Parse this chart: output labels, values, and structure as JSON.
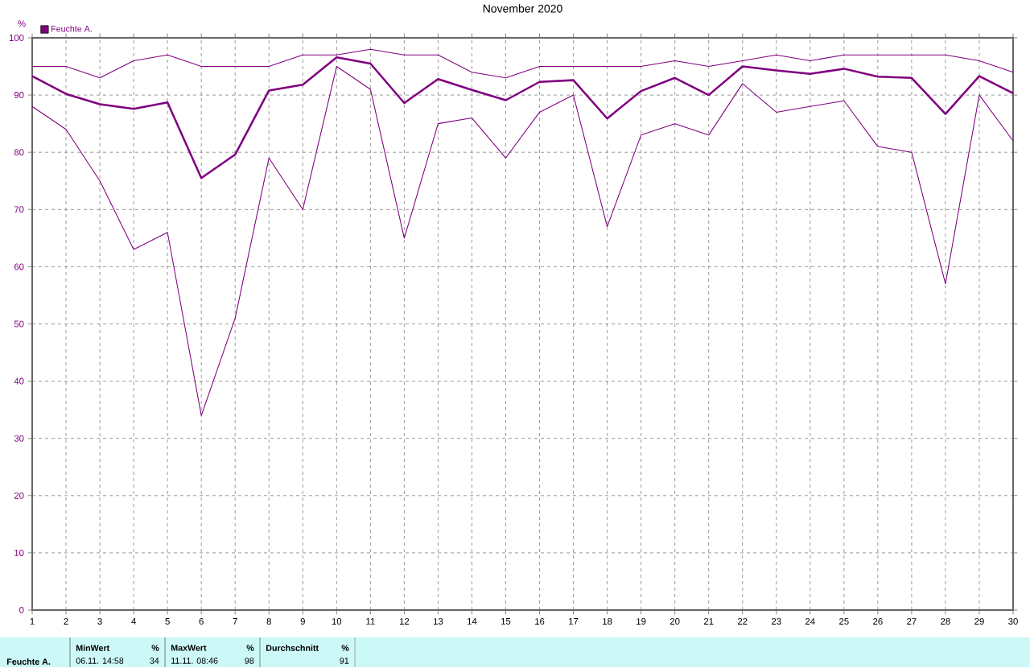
{
  "chart_data": {
    "type": "line",
    "title": "November 2020",
    "ylabel": "%",
    "categories": [
      "1",
      "2",
      "3",
      "4",
      "5",
      "6",
      "7",
      "8",
      "9",
      "10",
      "11",
      "12",
      "13",
      "14",
      "15",
      "16",
      "17",
      "18",
      "19",
      "20",
      "21",
      "22",
      "23",
      "24",
      "25",
      "26",
      "27",
      "28",
      "29",
      "30"
    ],
    "series": [
      {
        "color": "#800080",
        "values": [
          95,
          95,
          93,
          96,
          97,
          95,
          95,
          95,
          97,
          97,
          98,
          97,
          97,
          94,
          93,
          95,
          95,
          95,
          95,
          96,
          95,
          96,
          97,
          96,
          97,
          97,
          97,
          97,
          96,
          94
        ]
      },
      {
        "name": "Feuchte A.",
        "color": "#800080",
        "values": [
          93.3,
          90.2,
          88.4,
          87.6,
          88.7,
          75.5,
          79.6,
          90.8,
          91.8,
          96.6,
          95.5,
          88.6,
          92.8,
          90.9,
          89.1,
          92.3,
          92.6,
          85.9,
          90.7,
          93.0,
          90.0,
          95.0,
          94.3,
          93.7,
          94.6,
          93.2,
          93.0,
          86.7,
          93.3,
          90.3
        ]
      },
      {
        "color": "#800080",
        "values": [
          88,
          84,
          75,
          63,
          66,
          34,
          51,
          79,
          70,
          95,
          91,
          65,
          85,
          86,
          79,
          87,
          90,
          67,
          83,
          85,
          83,
          92,
          87,
          88,
          89,
          81,
          80,
          57,
          90,
          82
        ]
      }
    ],
    "ylim": [
      0,
      100
    ],
    "yticks": [
      0,
      10,
      20,
      30,
      40,
      50,
      60,
      70,
      80,
      90,
      100
    ],
    "grid": true,
    "legend": "top left",
    "marker": "none",
    "line_style": "solid",
    "annotations": [
      "Feuchte A.",
      "MinWert",
      "%",
      "06.11.  14:58",
      "34",
      "MaxWert",
      "%",
      "11.11.  08:46",
      "98",
      "Durchschnitt",
      "%",
      "91"
    ]
  }
}
